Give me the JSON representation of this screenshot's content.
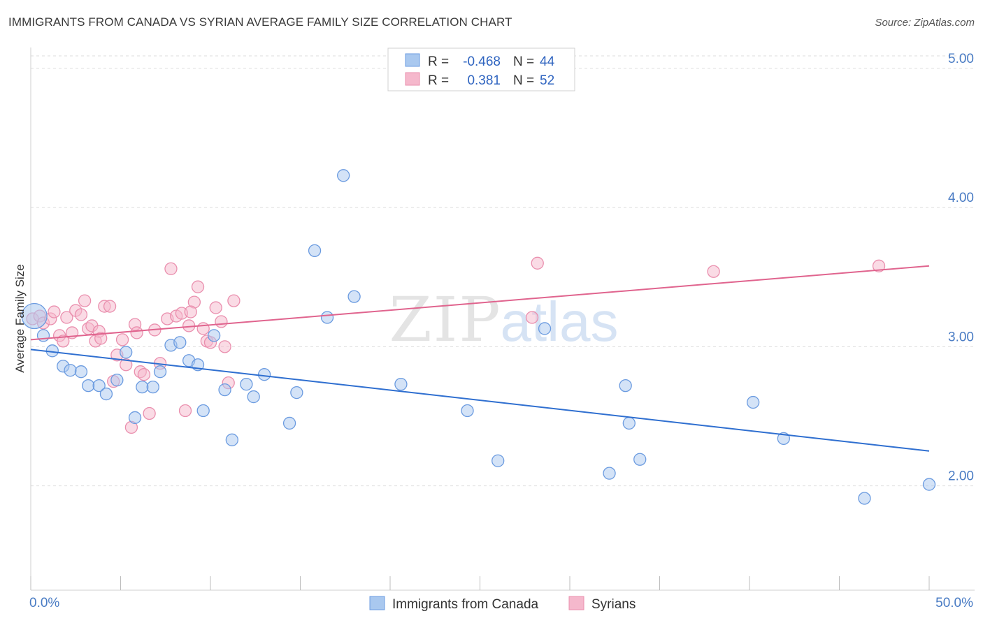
{
  "title": "IMMIGRANTS FROM CANADA VS SYRIAN AVERAGE FAMILY SIZE CORRELATION CHART",
  "source": "Source: ZipAtlas.com",
  "chart_data": {
    "type": "scatter",
    "ylabel": "Average Family Size",
    "xlim": [
      0,
      50
    ],
    "ylim": [
      1.25,
      5.15
    ],
    "x_tick_labels": [
      "0.0%",
      "50.0%"
    ],
    "y_ticks": [
      2.0,
      3.0,
      4.0,
      5.0
    ],
    "y_tick_labels": [
      "2.00",
      "3.00",
      "4.00",
      "5.00"
    ],
    "grid": true,
    "legend_position": "top-center",
    "watermark": "ZIPatlas",
    "series": [
      {
        "name": "Immigrants from Canada",
        "color": "#a9c8ef",
        "edge": "#6b9be0",
        "line_color": "#2f6fd0",
        "R": "-0.468",
        "N": "44",
        "trend": [
          [
            0,
            2.98
          ],
          [
            50,
            2.25
          ]
        ],
        "points": [
          [
            0.2,
            3.22
          ],
          [
            0.7,
            3.08
          ],
          [
            1.2,
            2.97
          ],
          [
            1.8,
            2.86
          ],
          [
            2.2,
            2.83
          ],
          [
            2.8,
            2.82
          ],
          [
            3.2,
            2.72
          ],
          [
            3.8,
            2.72
          ],
          [
            4.2,
            2.66
          ],
          [
            4.8,
            2.76
          ],
          [
            5.3,
            2.96
          ],
          [
            5.8,
            2.49
          ],
          [
            6.2,
            2.71
          ],
          [
            6.8,
            2.71
          ],
          [
            7.2,
            2.82
          ],
          [
            7.8,
            3.01
          ],
          [
            8.3,
            3.03
          ],
          [
            8.8,
            2.9
          ],
          [
            9.3,
            2.87
          ],
          [
            9.6,
            2.54
          ],
          [
            10.2,
            3.08
          ],
          [
            10.8,
            2.69
          ],
          [
            11.2,
            2.33
          ],
          [
            12.0,
            2.73
          ],
          [
            12.4,
            2.64
          ],
          [
            13.0,
            2.8
          ],
          [
            14.4,
            2.45
          ],
          [
            14.8,
            2.67
          ],
          [
            15.8,
            3.69
          ],
          [
            16.5,
            3.21
          ],
          [
            17.4,
            4.23
          ],
          [
            18.0,
            3.36
          ],
          [
            20.6,
            2.73
          ],
          [
            24.3,
            2.54
          ],
          [
            26.0,
            2.18
          ],
          [
            28.6,
            3.13
          ],
          [
            32.2,
            2.09
          ],
          [
            33.1,
            2.72
          ],
          [
            33.3,
            2.45
          ],
          [
            33.9,
            2.19
          ],
          [
            40.2,
            2.6
          ],
          [
            41.9,
            2.34
          ],
          [
            46.4,
            1.91
          ],
          [
            50.0,
            2.01
          ]
        ]
      },
      {
        "name": "Syrians",
        "color": "#f5b8cc",
        "edge": "#ea8fae",
        "line_color": "#e0648e",
        "R": "0.381",
        "N": "52",
        "trend": [
          [
            0,
            3.05
          ],
          [
            50,
            3.58
          ]
        ],
        "points": [
          [
            0.1,
            3.2
          ],
          [
            0.5,
            3.22
          ],
          [
            0.7,
            3.17
          ],
          [
            1.1,
            3.2
          ],
          [
            1.3,
            3.25
          ],
          [
            1.6,
            3.08
          ],
          [
            1.8,
            3.04
          ],
          [
            2.0,
            3.21
          ],
          [
            2.3,
            3.1
          ],
          [
            2.5,
            3.26
          ],
          [
            2.8,
            3.23
          ],
          [
            3.0,
            3.33
          ],
          [
            3.2,
            3.13
          ],
          [
            3.4,
            3.15
          ],
          [
            3.6,
            3.04
          ],
          [
            3.8,
            3.11
          ],
          [
            4.1,
            3.29
          ],
          [
            4.4,
            3.29
          ],
          [
            4.6,
            2.75
          ],
          [
            4.8,
            2.94
          ],
          [
            5.1,
            3.05
          ],
          [
            5.3,
            2.87
          ],
          [
            5.6,
            2.42
          ],
          [
            5.8,
            3.16
          ],
          [
            6.1,
            2.82
          ],
          [
            6.3,
            2.8
          ],
          [
            6.6,
            2.52
          ],
          [
            6.9,
            3.12
          ],
          [
            7.2,
            2.88
          ],
          [
            7.6,
            3.2
          ],
          [
            7.8,
            3.56
          ],
          [
            8.1,
            3.22
          ],
          [
            8.4,
            3.24
          ],
          [
            8.6,
            2.54
          ],
          [
            8.8,
            3.15
          ],
          [
            9.1,
            3.32
          ],
          [
            9.3,
            3.43
          ],
          [
            9.6,
            3.13
          ],
          [
            9.8,
            3.04
          ],
          [
            10.0,
            3.03
          ],
          [
            10.3,
            3.28
          ],
          [
            10.6,
            3.18
          ],
          [
            10.8,
            3.0
          ],
          [
            11.0,
            2.74
          ],
          [
            11.3,
            3.33
          ],
          [
            8.9,
            3.25
          ],
          [
            5.9,
            3.1
          ],
          [
            27.9,
            3.21
          ],
          [
            28.2,
            3.6
          ],
          [
            38.0,
            3.54
          ],
          [
            47.2,
            3.58
          ],
          [
            3.9,
            3.06
          ]
        ]
      }
    ]
  }
}
